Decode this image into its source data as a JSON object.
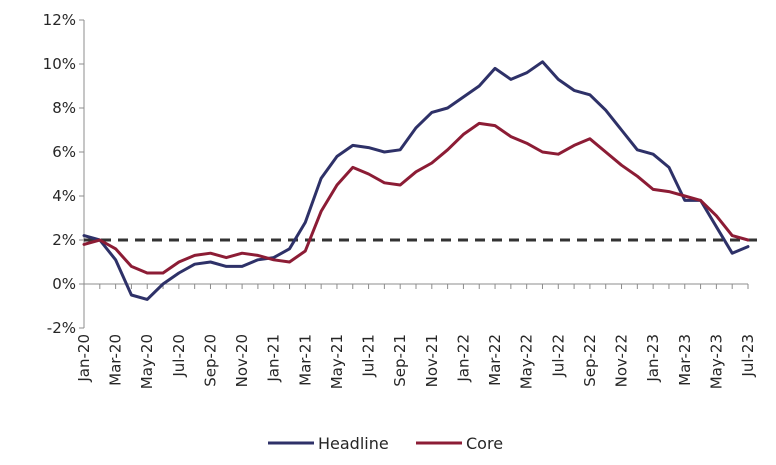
{
  "chart_data": {
    "type": "line",
    "title": "",
    "xlabel": "",
    "ylabel": "",
    "ylim": [
      -2,
      12
    ],
    "y_ticks": [
      "-2%",
      "0%",
      "2%",
      "4%",
      "6%",
      "8%",
      "10%",
      "12%"
    ],
    "y_tick_values": [
      -2,
      0,
      2,
      4,
      6,
      8,
      10,
      12
    ],
    "x_tick_labels": [
      "Jan-20",
      "Mar-20",
      "May-20",
      "Jul-20",
      "Sep-20",
      "Nov-20",
      "Jan-21",
      "Mar-21",
      "May-21",
      "Jul-21",
      "Sep-21",
      "Nov-21",
      "Jan-22",
      "Mar-22",
      "May-22",
      "Jul-22",
      "Sep-22",
      "Nov-22",
      "Jan-23",
      "Mar-23",
      "May-23",
      "Jul-23"
    ],
    "x": [
      "Jan-20",
      "Feb-20",
      "Mar-20",
      "Apr-20",
      "May-20",
      "Jun-20",
      "Jul-20",
      "Aug-20",
      "Sep-20",
      "Oct-20",
      "Nov-20",
      "Dec-20",
      "Jan-21",
      "Feb-21",
      "Mar-21",
      "Apr-21",
      "May-21",
      "Jun-21",
      "Jul-21",
      "Aug-21",
      "Sep-21",
      "Oct-21",
      "Nov-21",
      "Dec-21",
      "Jan-22",
      "Feb-22",
      "Mar-22",
      "Apr-22",
      "May-22",
      "Jun-22",
      "Jul-22",
      "Aug-22",
      "Sep-22",
      "Oct-22",
      "Nov-22",
      "Dec-22",
      "Jan-23",
      "Feb-23",
      "Mar-23",
      "Apr-23",
      "May-23",
      "Jun-23",
      "Jul-23"
    ],
    "series": [
      {
        "name": "Headline",
        "color": "#2e3168",
        "values": [
          2.2,
          2.0,
          1.1,
          -0.5,
          -0.7,
          0.0,
          0.5,
          0.9,
          1.0,
          0.8,
          0.8,
          1.1,
          1.2,
          1.6,
          2.8,
          4.8,
          5.8,
          6.3,
          6.2,
          6.0,
          6.1,
          7.1,
          7.8,
          8.0,
          8.5,
          9.0,
          9.8,
          9.3,
          9.6,
          10.1,
          9.3,
          8.8,
          8.6,
          7.9,
          7.0,
          6.1,
          5.9,
          5.3,
          3.8,
          3.8,
          2.6,
          1.4,
          1.7
        ]
      },
      {
        "name": "Core",
        "color": "#8c1c35",
        "values": [
          1.8,
          2.0,
          1.6,
          0.8,
          0.5,
          0.5,
          1.0,
          1.3,
          1.4,
          1.2,
          1.4,
          1.3,
          1.1,
          1.0,
          1.5,
          3.3,
          4.5,
          5.3,
          5.0,
          4.6,
          4.5,
          5.1,
          5.5,
          6.1,
          6.8,
          7.3,
          7.2,
          6.7,
          6.4,
          6.0,
          5.9,
          6.3,
          6.6,
          6.0,
          5.4,
          4.9,
          4.3,
          4.2,
          4.0,
          3.8,
          3.1,
          2.2,
          2.0
        ]
      }
    ],
    "reference_line": {
      "y": 2,
      "style": "dashed",
      "color": "#333333"
    },
    "legend_position": "bottom",
    "grid": false
  }
}
